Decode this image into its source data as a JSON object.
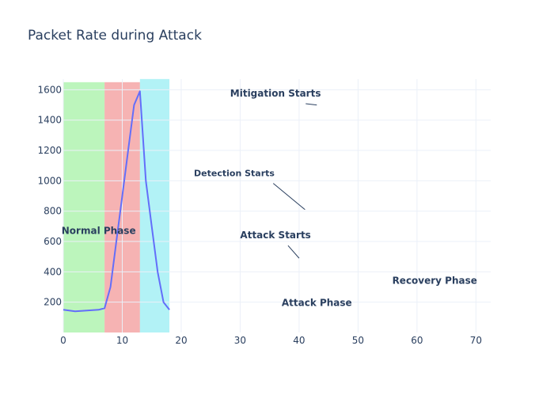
{
  "chart_data": {
    "type": "line",
    "title": "Packet Rate during Attack",
    "xlabel": "",
    "ylabel": "",
    "xlim": [
      0,
      72.5
    ],
    "ylim": [
      0,
      1670
    ],
    "x_ticks": [
      0,
      10,
      20,
      30,
      40,
      50,
      60,
      70
    ],
    "y_ticks": [
      200,
      400,
      600,
      800,
      1000,
      1200,
      1400,
      1600
    ],
    "grid": true,
    "legend": "none",
    "series": [
      {
        "color": "#636efa",
        "points": [
          [
            0,
            150
          ],
          [
            2,
            140
          ],
          [
            4,
            145
          ],
          [
            6,
            150
          ],
          [
            7,
            160
          ],
          [
            8,
            300
          ],
          [
            9,
            600
          ],
          [
            10,
            900
          ],
          [
            11,
            1200
          ],
          [
            12,
            1500
          ],
          [
            13,
            1590
          ],
          [
            14,
            1000
          ],
          [
            15,
            700
          ],
          [
            16,
            400
          ],
          [
            17,
            200
          ],
          [
            18,
            150
          ]
        ]
      }
    ],
    "phase_bands": [
      {
        "x0": 0,
        "x1": 7,
        "color": "#90ee90"
      },
      {
        "x0": 7,
        "x1": 13,
        "color": "#f08080"
      },
      {
        "x0": 13,
        "x1": 18,
        "color": "#7fe9f0"
      }
    ],
    "annotations": [
      {
        "text": "Normal Phase",
        "x": 6,
        "y": 650,
        "size": 12
      },
      {
        "text": "Attack Phase",
        "x": 43,
        "y": 175,
        "size": 12
      },
      {
        "text": "Recovery Phase",
        "x": 63,
        "y": 320,
        "size": 12
      },
      {
        "text": "Attack Starts",
        "x": 36,
        "y": 620,
        "size": 12,
        "arrow_to": [
          40,
          490
        ]
      },
      {
        "text": "Detection Starts",
        "x": 29,
        "y": 1030,
        "size": 11,
        "arrow_to": [
          41,
          810
        ]
      },
      {
        "text": "Mitigation Starts",
        "x": 36,
        "y": 1555,
        "size": 12,
        "arrow_to": [
          43,
          1500
        ]
      }
    ]
  }
}
